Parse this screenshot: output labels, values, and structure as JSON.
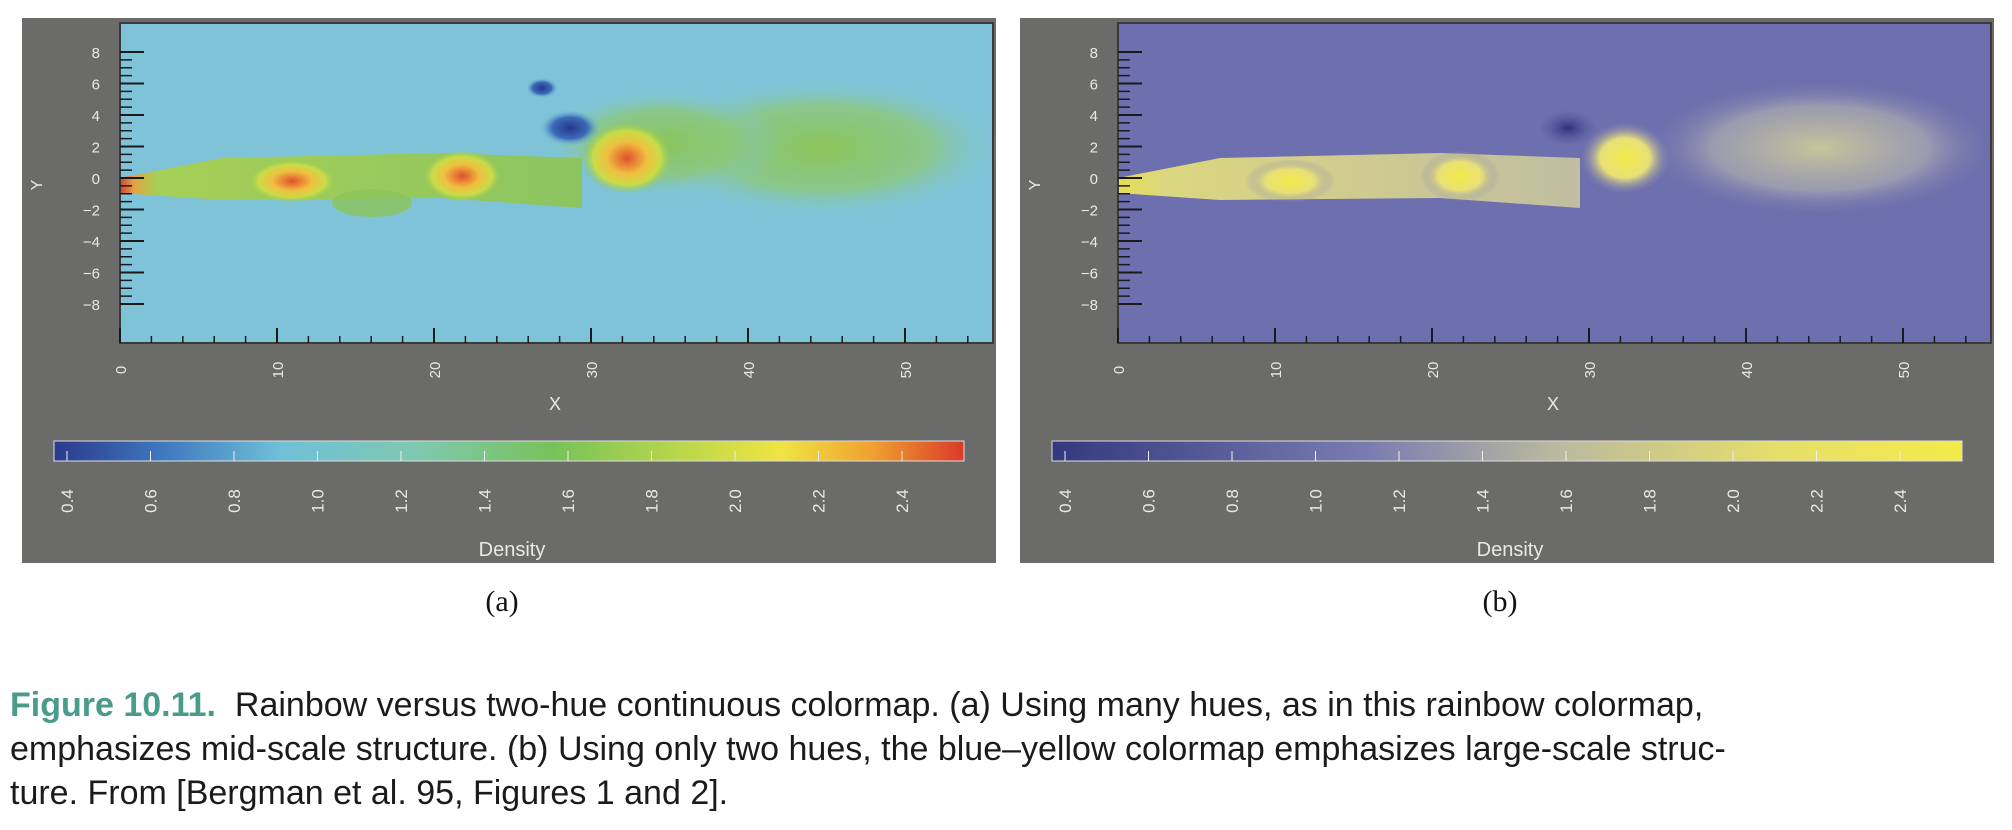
{
  "figure": {
    "number": "Figure 10.11.",
    "caption_lines": [
      "Rainbow versus two-hue continuous colormap. (a) Using many hues, as in this rainbow colormap,",
      "emphasizes mid-scale structure. (b) Using only two hues, the blue–yellow colormap emphasizes large-scale struc-",
      "ture. From [Bergman et al. 95, Figures 1 and 2]."
    ]
  },
  "panels": [
    {
      "id": "a",
      "sublabel": "(a)",
      "colormap": "rainbow",
      "axis_x_label": "X",
      "axis_y_label": "Y",
      "x_ticks": [
        "0",
        "10",
        "20",
        "30",
        "40",
        "50"
      ],
      "y_ticks": [
        "8",
        "6",
        "4",
        "2",
        "0",
        "−2",
        "−4",
        "−6",
        "−8"
      ],
      "colorbar_label": "Density",
      "colorbar_ticks": [
        "0.4",
        "0.6",
        "0.8",
        "1.0",
        "1.2",
        "1.4",
        "1.6",
        "1.8",
        "2.0",
        "2.2",
        "2.4"
      ],
      "colors": {
        "background": "#7fc3d8",
        "low": "#2b3a8c",
        "mid": "#7cc35a",
        "high": "#d93a2a"
      }
    },
    {
      "id": "b",
      "sublabel": "(b)",
      "colormap": "blue-yellow",
      "axis_x_label": "X",
      "axis_y_label": "Y",
      "x_ticks": [
        "0",
        "10",
        "20",
        "30",
        "40",
        "50"
      ],
      "y_ticks": [
        "8",
        "6",
        "4",
        "2",
        "0",
        "−2",
        "−4",
        "−6",
        "−8"
      ],
      "colorbar_label": "Density",
      "colorbar_ticks": [
        "0.4",
        "0.6",
        "0.8",
        "1.0",
        "1.2",
        "1.4",
        "1.6",
        "1.8",
        "2.0",
        "2.2",
        "2.4"
      ],
      "colors": {
        "background": "#6d6fae",
        "low": "#34387f",
        "high": "#f0e84e"
      }
    }
  ]
}
